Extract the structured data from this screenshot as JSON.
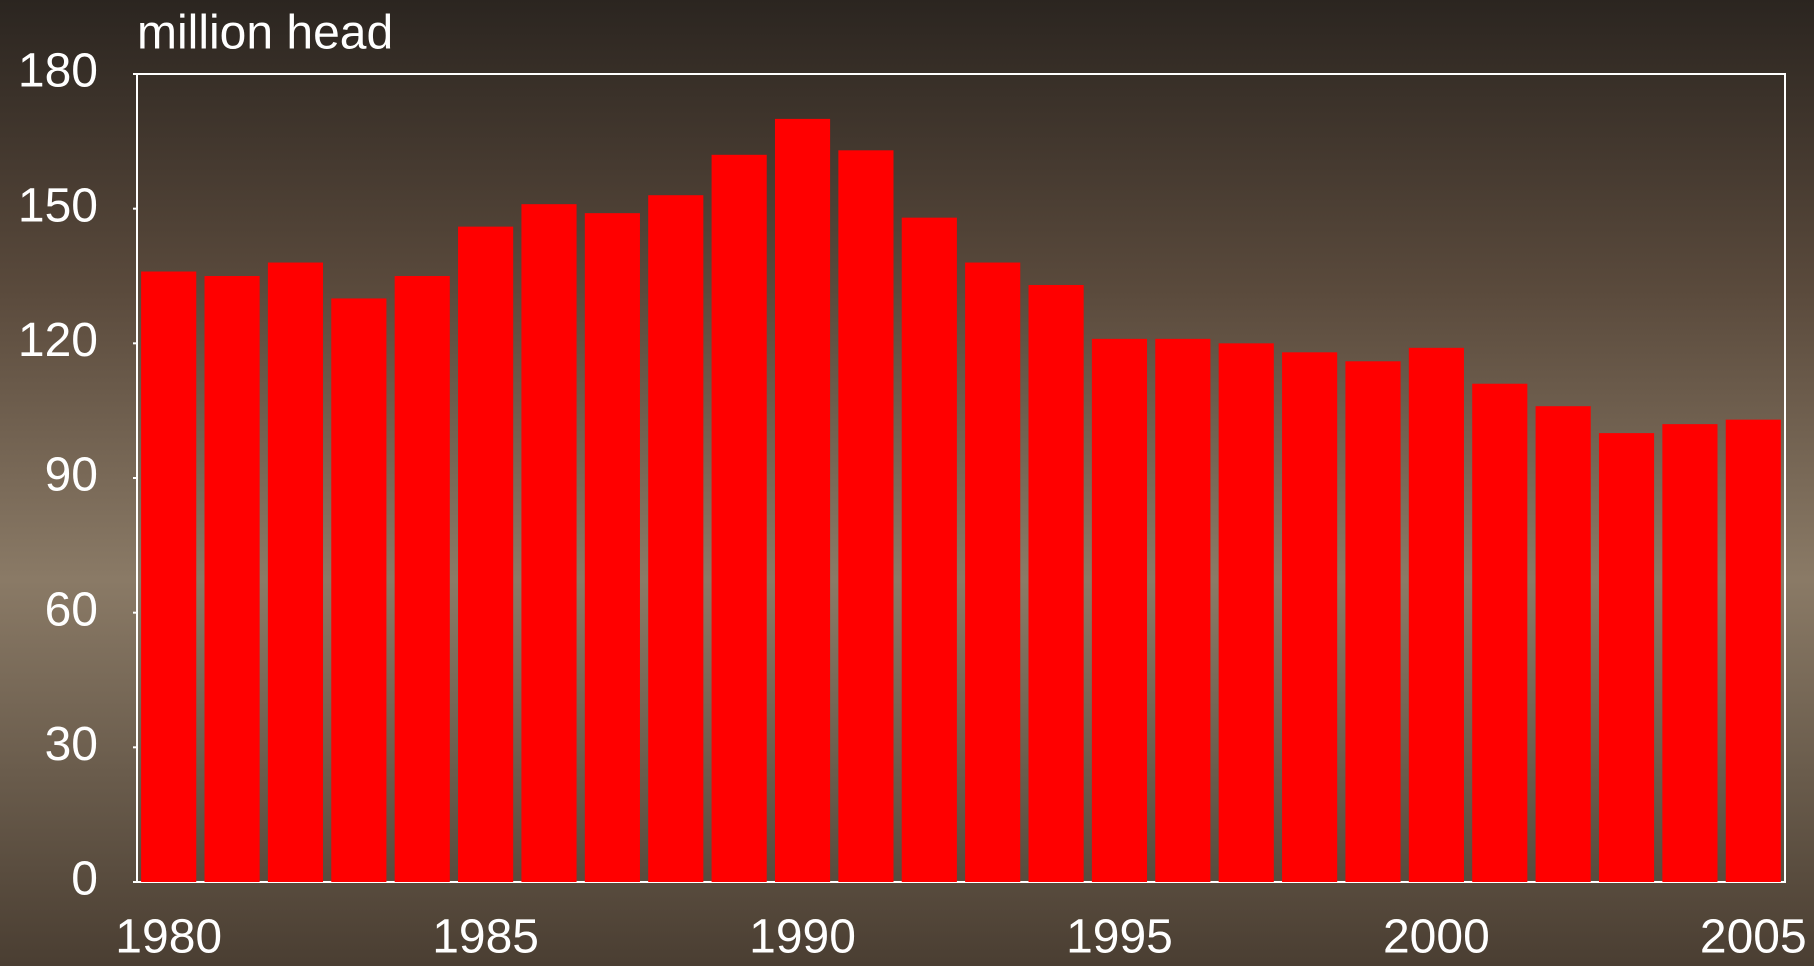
{
  "chart_data": {
    "type": "bar",
    "title": "million head",
    "categories": [
      "1980",
      null,
      null,
      null,
      null,
      "1985",
      null,
      null,
      null,
      null,
      "1990",
      null,
      null,
      null,
      null,
      "1995",
      null,
      null,
      null,
      null,
      "2000",
      null,
      null,
      null,
      null,
      "2005"
    ],
    "values": [
      136,
      135,
      138,
      130,
      135,
      146,
      151,
      149,
      153,
      162,
      170,
      163,
      148,
      138,
      133,
      121,
      121,
      120,
      118,
      116,
      119,
      111,
      106,
      100,
      102,
      103
    ],
    "color": "#ff0000",
    "ylim": [
      0,
      180
    ],
    "yticks": [
      0,
      30,
      60,
      90,
      120,
      150,
      180
    ],
    "grid": false
  }
}
